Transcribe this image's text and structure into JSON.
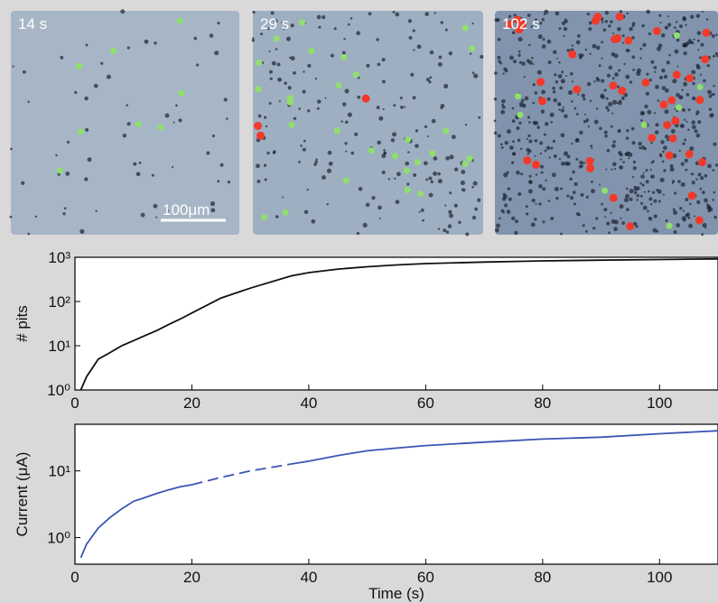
{
  "panels": [
    {
      "label": "14 s"
    },
    {
      "label": "29 s"
    },
    {
      "label": "102 s"
    }
  ],
  "scale_bar": "100μm",
  "chart_data": [
    {
      "type": "line",
      "ylabel": "# pits",
      "log_y": true,
      "x": [
        1,
        2,
        4,
        6,
        8,
        10,
        12,
        14,
        16,
        18,
        20,
        25,
        30,
        37,
        40,
        45,
        50,
        55,
        60,
        70,
        80,
        90,
        100,
        110
      ],
      "series": [
        {
          "color": "#111111",
          "values": [
            1,
            2,
            5,
            7,
            10,
            13,
            17,
            22,
            30,
            40,
            55,
            120,
            200,
            380,
            450,
            540,
            610,
            670,
            720,
            780,
            830,
            860,
            890,
            920
          ]
        }
      ],
      "xlim": [
        0,
        110
      ],
      "xticks": [
        0,
        20,
        40,
        60,
        80,
        100
      ],
      "ylim": [
        1,
        1000
      ],
      "yticks": [
        {
          "value": 1,
          "label": "10⁰"
        },
        {
          "value": 10,
          "label": "10¹"
        },
        {
          "value": 100,
          "label": "10²"
        },
        {
          "value": 1000,
          "label": "10³"
        }
      ]
    },
    {
      "type": "line",
      "ylabel": "Current (μA)",
      "xlabel": "Time (s)",
      "log_y": true,
      "x": [
        1,
        2,
        4,
        6,
        8,
        10,
        12,
        14,
        16,
        18,
        20,
        25,
        30,
        37,
        40,
        45,
        50,
        55,
        60,
        70,
        80,
        90,
        100,
        110
      ],
      "series": [
        {
          "color": "#3a55b4",
          "values": [
            0.5,
            0.8,
            1.4,
            2.0,
            2.7,
            3.5,
            4.0,
            4.6,
            5.2,
            5.8,
            6.2,
            null,
            null,
            12.7,
            14,
            17,
            20,
            22,
            24,
            27,
            30,
            32,
            36,
            40
          ]
        },
        {
          "color": "#3a55b4",
          "dash": true,
          "values": [
            null,
            null,
            null,
            null,
            null,
            null,
            null,
            null,
            null,
            null,
            6.2,
            8,
            10,
            12.7,
            null,
            null,
            null,
            null,
            null,
            null,
            null,
            null,
            null,
            null
          ]
        }
      ],
      "xlim": [
        0,
        110
      ],
      "xticks": [
        0,
        20,
        40,
        60,
        80,
        100
      ],
      "ylim": [
        0.4,
        50
      ],
      "yticks": [
        {
          "value": 1,
          "label": "10⁰"
        },
        {
          "value": 10,
          "label": "10¹"
        }
      ]
    }
  ]
}
